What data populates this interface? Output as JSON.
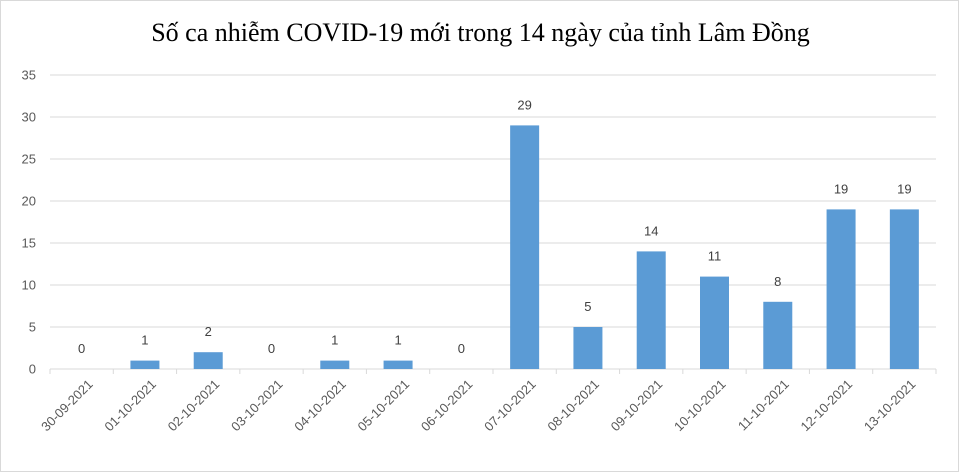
{
  "chart_data": {
    "type": "bar",
    "title": "Số ca nhiễm COVID-19 mới trong 14 ngày của tỉnh Lâm Đồng",
    "xlabel": "",
    "ylabel": "",
    "categories": [
      "30-09-2021",
      "01-10-2021",
      "02-10-2021",
      "03-10-2021",
      "04-10-2021",
      "05-10-2021",
      "06-10-2021",
      "07-10-2021",
      "08-10-2021",
      "09-10-2021",
      "10-10-2021",
      "11-10-2021",
      "12-10-2021",
      "13-10-2021"
    ],
    "values": [
      0,
      1,
      2,
      0,
      1,
      1,
      0,
      29,
      5,
      14,
      11,
      8,
      19,
      19
    ],
    "ylim": [
      0,
      35
    ],
    "yticks": [
      0,
      5,
      10,
      15,
      20,
      25,
      30,
      35
    ],
    "grid": true,
    "data_labels": true,
    "legend": "none",
    "bar_color": "#5b9bd5",
    "grid_color": "#d9d9d9"
  }
}
